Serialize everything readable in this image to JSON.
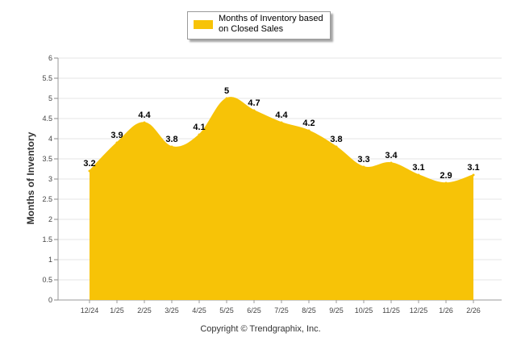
{
  "legend": {
    "label": "Months of Inventory based on Closed Sales",
    "color": "#F7C307"
  },
  "footer": {
    "copyright": "Copyright © Trendgraphix, Inc."
  },
  "chart_data": {
    "type": "area",
    "title": "",
    "xlabel": "",
    "ylabel": "Months of Inventory",
    "ylim": [
      0,
      6
    ],
    "yticks": [
      0,
      0.5,
      1,
      1.5,
      2,
      2.5,
      3,
      3.5,
      4,
      4.5,
      5,
      5.5,
      6
    ],
    "grid": true,
    "legend_position": "top-center",
    "categories": [
      "12/24",
      "1/25",
      "2/25",
      "3/25",
      "4/25",
      "5/25",
      "6/25",
      "7/25",
      "8/25",
      "9/25",
      "10/25",
      "11/25",
      "12/25",
      "1/26",
      "2/26"
    ],
    "series": [
      {
        "name": "Months of Inventory based on Closed Sales",
        "values": [
          3.2,
          3.9,
          4.4,
          3.8,
          4.1,
          5,
          4.7,
          4.4,
          4.2,
          3.8,
          3.3,
          3.4,
          3.1,
          2.9,
          3.1
        ],
        "labels": [
          "3.2",
          "3.9",
          "4.4",
          "3.8",
          "4.1",
          "5",
          "4.7",
          "4.4",
          "4.2",
          "3.8",
          "3.3",
          "3.4",
          "3.1",
          "2.9",
          "3.1"
        ],
        "color": "#F7C307"
      }
    ]
  }
}
